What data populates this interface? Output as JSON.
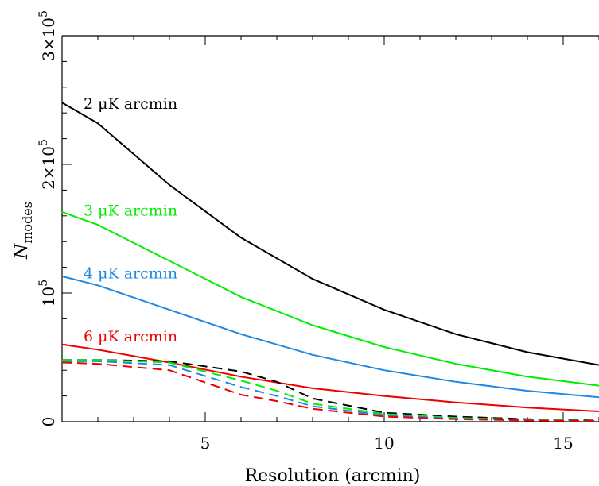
{
  "chart_data": {
    "type": "line",
    "title": "",
    "xlabel": "Resolution (arcmin)",
    "ylabel": "N",
    "ylabel_subscript": "modes",
    "xlim": [
      1,
      16
    ],
    "ylim": [
      0,
      300000
    ],
    "x_ticks": [
      5,
      10,
      15
    ],
    "y_ticks": [
      {
        "value": 0,
        "base": "0",
        "exp": ""
      },
      {
        "value": 100000,
        "base": "10",
        "exp": "5"
      },
      {
        "value": 200000,
        "base": "2×10",
        "exp": "5"
      },
      {
        "value": 300000,
        "base": "3×10",
        "exp": "5"
      }
    ],
    "grid": false,
    "legend": "inline labels",
    "series": [
      {
        "name": "2 μK arcmin",
        "color": "#000000",
        "style": "solid",
        "x": [
          1,
          2,
          4,
          6,
          8,
          10,
          12,
          14,
          16
        ],
        "y": [
          248000,
          232000,
          184000,
          143000,
          111000,
          87000,
          68000,
          54000,
          44000
        ]
      },
      {
        "name": "3 μK arcmin",
        "color": "#00ee00",
        "style": "solid",
        "x": [
          1,
          2,
          4,
          6,
          8,
          10,
          12,
          14,
          16
        ],
        "y": [
          163000,
          153000,
          125000,
          97000,
          75000,
          58000,
          45000,
          35000,
          28000
        ]
      },
      {
        "name": "4 μK arcmin",
        "color": "#1e88e5",
        "style": "solid",
        "x": [
          1,
          2,
          4,
          6,
          8,
          10,
          12,
          14,
          16
        ],
        "y": [
          113000,
          106000,
          87000,
          68000,
          52000,
          40000,
          31000,
          24000,
          19000
        ]
      },
      {
        "name": "6 μK arcmin",
        "color": "#ee0000",
        "style": "solid",
        "x": [
          1,
          2,
          4,
          6,
          8,
          10,
          12,
          14,
          16
        ],
        "y": [
          60000,
          56000,
          46000,
          35000,
          26000,
          20000,
          15000,
          11000,
          8000
        ]
      },
      {
        "color": "#000000",
        "style": "dashed",
        "x": [
          1,
          2,
          4,
          6,
          7,
          8,
          10,
          12,
          14,
          16
        ],
        "y": [
          48000,
          48000,
          47000,
          39000,
          31000,
          18000,
          7000,
          4000,
          2000,
          1000
        ]
      },
      {
        "color": "#00ee00",
        "style": "dashed",
        "x": [
          1,
          2,
          4,
          6,
          7,
          8,
          10,
          12,
          14,
          16
        ],
        "y": [
          48000,
          48000,
          46000,
          32000,
          24000,
          14000,
          6000,
          3000,
          1500,
          800
        ]
      },
      {
        "color": "#1e88e5",
        "style": "dashed",
        "x": [
          1,
          2,
          4,
          6,
          7,
          8,
          10,
          12,
          14,
          16
        ],
        "y": [
          47000,
          47000,
          44000,
          27000,
          20000,
          12000,
          5000,
          2500,
          1200,
          600
        ]
      },
      {
        "color": "#ee0000",
        "style": "dashed",
        "x": [
          1,
          2,
          4,
          6,
          7,
          8,
          10,
          12,
          14,
          16
        ],
        "y": [
          46000,
          45000,
          40000,
          21000,
          16000,
          10000,
          4000,
          2000,
          1000,
          500
        ]
      }
    ],
    "annotations": [
      {
        "text": "2 μK arcmin",
        "color": "#000000",
        "x": 1.6,
        "y": 247000
      },
      {
        "text": "3 μK arcmin",
        "color": "#00ee00",
        "x": 1.6,
        "y": 164000
      },
      {
        "text": "4 μK arcmin",
        "color": "#1e88e5",
        "x": 1.6,
        "y": 115000
      },
      {
        "text": "6 μK arcmin",
        "color": "#ee0000",
        "x": 1.6,
        "y": 66000
      }
    ]
  }
}
